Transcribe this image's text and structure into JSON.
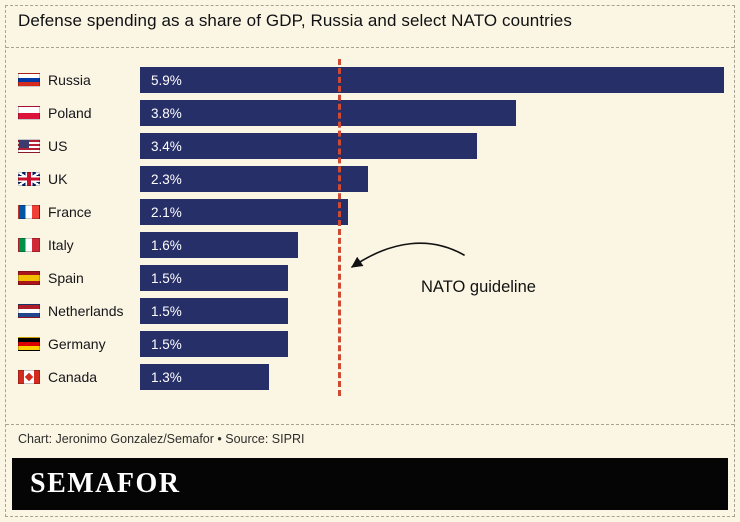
{
  "header": {
    "title": "Defense spending as a share of GDP, Russia and select NATO countries"
  },
  "chart_data": {
    "type": "bar",
    "orientation": "horizontal",
    "title": "Defense spending as a share of GDP, Russia and select NATO countries",
    "categories": [
      "Russia",
      "Poland",
      "US",
      "UK",
      "France",
      "Italy",
      "Spain",
      "Netherlands",
      "Germany",
      "Canada"
    ],
    "values": [
      5.9,
      3.8,
      3.4,
      2.3,
      2.1,
      1.6,
      1.5,
      1.5,
      1.5,
      1.3
    ],
    "value_labels": [
      "5.9%",
      "3.8%",
      "3.4%",
      "2.3%",
      "2.1%",
      "1.6%",
      "1.5%",
      "1.5%",
      "1.5%",
      "1.3%"
    ],
    "flags": [
      "ru",
      "pl",
      "us",
      "uk",
      "fr",
      "it",
      "es",
      "nl",
      "de",
      "ca"
    ],
    "xlim": [
      0,
      5.9
    ],
    "bar_color": "#272f68",
    "grid": false,
    "legend": false,
    "guideline": {
      "value": 2.0,
      "label": "NATO guideline",
      "color": "#cf4a33"
    }
  },
  "footer": {
    "credit": "Chart: Jeronimo Gonzalez/Semafor • Source: SIPRI"
  },
  "brand": {
    "wordmark": "SEMAFOR"
  },
  "colors": {
    "background": "#fbf5e3",
    "bar": "#272f68",
    "guideline": "#cf4a33",
    "brandbar": "#050505"
  }
}
